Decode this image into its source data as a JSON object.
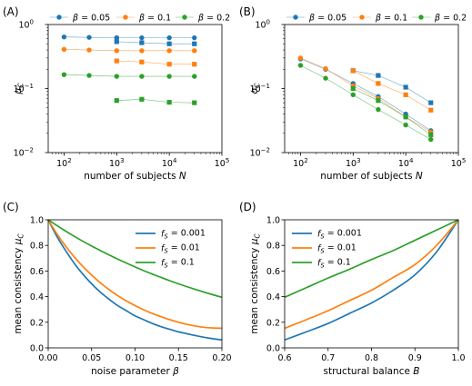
{
  "colors": {
    "blue": "#1f77b4",
    "orange": "#ff7f0e",
    "green": "#2ca02c"
  },
  "chart_data": [
    {
      "id": "A",
      "type": "scatter",
      "panel_label": "(A)",
      "xlabel": "number of subjects N",
      "ylabel": "μ_C",
      "xscale": "log",
      "yscale": "log",
      "xlim": [
        50,
        100000
      ],
      "ylim": [
        0.01,
        1
      ],
      "xticks": [
        {
          "v": 100,
          "b": "10",
          "e": "2"
        },
        {
          "v": 1000,
          "b": "10",
          "e": "3"
        },
        {
          "v": 10000,
          "b": "10",
          "e": "4"
        },
        {
          "v": 100000,
          "b": "10",
          "e": "5"
        }
      ],
      "yticks": [
        {
          "v": 0.01,
          "b": "10",
          "e": "−2"
        },
        {
          "v": 0.1,
          "b": "10",
          "e": "−1"
        },
        {
          "v": 1,
          "b": "10",
          "e": "0"
        }
      ],
      "legend": {
        "placement": "top",
        "entries": [
          {
            "label": "β = 0.05",
            "color": "#1f77b4"
          },
          {
            "label": "β = 0.1",
            "color": "#ff7f0e"
          },
          {
            "label": "β = 0.2",
            "color": "#2ca02c"
          }
        ]
      },
      "series": [
        {
          "color": "#1f77b4",
          "marker": "circle",
          "x": [
            100,
            300,
            1000
          ],
          "y": [
            0.64,
            0.63,
            0.62
          ]
        },
        {
          "color": "#1f77b4",
          "marker": "square",
          "x": [
            1000,
            3000,
            10000,
            30000
          ],
          "y": [
            0.54,
            0.52,
            0.5,
            0.5
          ]
        },
        {
          "color": "#1f77b4",
          "marker": "circle",
          "x": [
            1000,
            3000,
            10000,
            30000
          ],
          "y": [
            0.62,
            0.62,
            0.62,
            0.62
          ]
        },
        {
          "color": "#ff7f0e",
          "marker": "circle",
          "x": [
            100,
            300,
            1000,
            3000,
            10000,
            30000
          ],
          "y": [
            0.41,
            0.4,
            0.39,
            0.39,
            0.39,
            0.39
          ]
        },
        {
          "color": "#ff7f0e",
          "marker": "square",
          "x": [
            1000,
            3000,
            10000,
            30000
          ],
          "y": [
            0.27,
            0.26,
            0.24,
            0.24
          ]
        },
        {
          "color": "#2ca02c",
          "marker": "circle",
          "x": [
            100,
            300,
            1000,
            3000,
            10000,
            30000
          ],
          "y": [
            0.165,
            0.16,
            0.155,
            0.155,
            0.155,
            0.155
          ]
        },
        {
          "color": "#2ca02c",
          "marker": "square",
          "x": [
            1000,
            3000,
            10000,
            30000
          ],
          "y": [
            0.065,
            0.068,
            0.061,
            0.06
          ]
        }
      ]
    },
    {
      "id": "B",
      "type": "scatter",
      "panel_label": "(B)",
      "xlabel": "number of subjects N",
      "ylabel": "σ_C",
      "xscale": "log",
      "yscale": "log",
      "xlim": [
        50,
        100000
      ],
      "ylim": [
        0.01,
        1
      ],
      "xticks": [
        {
          "v": 100,
          "b": "10",
          "e": "2"
        },
        {
          "v": 1000,
          "b": "10",
          "e": "3"
        },
        {
          "v": 10000,
          "b": "10",
          "e": "4"
        },
        {
          "v": 100000,
          "b": "10",
          "e": "5"
        }
      ],
      "yticks": [
        {
          "v": 0.01,
          "b": "10",
          "e": "−2"
        },
        {
          "v": 0.1,
          "b": "10",
          "e": "−1"
        },
        {
          "v": 1,
          "b": "10",
          "e": "0"
        }
      ],
      "legend": {
        "placement": "top",
        "entries": [
          {
            "label": "β = 0.05",
            "color": "#1f77b4"
          },
          {
            "label": "β = 0.1",
            "color": "#ff7f0e"
          },
          {
            "label": "β = 0.2",
            "color": "#2ca02c"
          }
        ]
      },
      "series": [
        {
          "color": "#1f77b4",
          "marker": "circle",
          "x": [
            100,
            300,
            1000,
            3000,
            10000,
            30000
          ],
          "y": [
            0.29,
            0.2,
            0.12,
            0.075,
            0.04,
            0.022
          ]
        },
        {
          "color": "#1f77b4",
          "marker": "square",
          "x": [
            1000,
            3000,
            10000,
            30000
          ],
          "y": [
            0.19,
            0.16,
            0.105,
            0.06
          ]
        },
        {
          "color": "#ff7f0e",
          "marker": "circle",
          "x": [
            100,
            300,
            1000,
            3000,
            10000,
            30000
          ],
          "y": [
            0.3,
            0.205,
            0.11,
            0.07,
            0.036,
            0.021
          ]
        },
        {
          "color": "#ff7f0e",
          "marker": "square",
          "x": [
            1000,
            3000,
            10000,
            30000
          ],
          "y": [
            0.19,
            0.12,
            0.08,
            0.046
          ]
        },
        {
          "color": "#2ca02c",
          "marker": "circle",
          "x": [
            100,
            300,
            1000,
            3000,
            10000,
            30000
          ],
          "y": [
            0.23,
            0.145,
            0.08,
            0.047,
            0.027,
            0.016
          ]
        },
        {
          "color": "#2ca02c",
          "marker": "square",
          "x": [
            1000,
            3000,
            10000,
            30000
          ],
          "y": [
            0.1,
            0.065,
            0.036,
            0.019
          ]
        }
      ]
    },
    {
      "id": "C",
      "type": "line",
      "panel_label": "(C)",
      "xlabel": "noise parameter β",
      "ylabel": "mean consistency μ_C",
      "xlim": [
        0,
        0.2
      ],
      "ylim": [
        0,
        1
      ],
      "xticks": [
        "0.00",
        "0.05",
        "0.10",
        "0.15",
        "0.20"
      ],
      "yticks": [
        "0.0",
        "0.2",
        "0.4",
        "0.6",
        "0.8",
        "1.0"
      ],
      "legend": {
        "placement": "top-right",
        "entries": [
          {
            "label": "f_S = 0.001",
            "color": "#1f77b4"
          },
          {
            "label": "f_S = 0.01",
            "color": "#ff7f0e"
          },
          {
            "label": "f_S = 0.1",
            "color": "#2ca02c"
          }
        ]
      },
      "x": [
        0,
        0.01,
        0.02,
        0.03,
        0.04,
        0.05,
        0.06,
        0.07,
        0.08,
        0.09,
        0.1,
        0.11,
        0.12,
        0.13,
        0.14,
        0.15,
        0.16,
        0.17,
        0.18,
        0.19,
        0.2
      ],
      "series": [
        {
          "color": "#1f77b4",
          "values": [
            1.0,
            0.87,
            0.76,
            0.66,
            0.575,
            0.5,
            0.435,
            0.38,
            0.33,
            0.29,
            0.25,
            0.22,
            0.19,
            0.165,
            0.145,
            0.125,
            0.11,
            0.095,
            0.082,
            0.071,
            0.062
          ]
        },
        {
          "color": "#ff7f0e",
          "values": [
            1.0,
            0.89,
            0.795,
            0.71,
            0.635,
            0.568,
            0.508,
            0.455,
            0.408,
            0.366,
            0.33,
            0.297,
            0.268,
            0.243,
            0.22,
            0.2,
            0.183,
            0.17,
            0.16,
            0.155,
            0.153
          ]
        },
        {
          "color": "#2ca02c",
          "values": [
            1.0,
            0.955,
            0.912,
            0.871,
            0.832,
            0.795,
            0.76,
            0.726,
            0.693,
            0.662,
            0.632,
            0.603,
            0.576,
            0.55,
            0.524,
            0.5,
            0.477,
            0.455,
            0.434,
            0.414,
            0.395
          ]
        }
      ]
    },
    {
      "id": "D",
      "type": "line",
      "panel_label": "(D)",
      "xlabel": "structural balance B",
      "ylabel": "mean consistency μ_C",
      "xlim": [
        0.6,
        1.0
      ],
      "ylim": [
        0,
        1
      ],
      "xticks": [
        "0.6",
        "0.7",
        "0.8",
        "0.9",
        "1.0"
      ],
      "yticks": [
        "0.0",
        "0.2",
        "0.4",
        "0.6",
        "0.8",
        "1.0"
      ],
      "legend": {
        "placement": "top-left",
        "entries": [
          {
            "label": "f_S = 0.001",
            "color": "#1f77b4"
          },
          {
            "label": "f_S = 0.01",
            "color": "#ff7f0e"
          },
          {
            "label": "f_S = 0.1",
            "color": "#2ca02c"
          }
        ]
      },
      "x": [
        0.6,
        0.65,
        0.7,
        0.75,
        0.8,
        0.85,
        0.9,
        0.95,
        1.0
      ],
      "series": [
        {
          "color": "#1f77b4",
          "values": [
            0.062,
            0.125,
            0.19,
            0.27,
            0.35,
            0.45,
            0.57,
            0.75,
            1.0
          ]
        },
        {
          "color": "#ff7f0e",
          "values": [
            0.153,
            0.22,
            0.29,
            0.37,
            0.45,
            0.55,
            0.65,
            0.8,
            1.0
          ]
        },
        {
          "color": "#2ca02c",
          "values": [
            0.395,
            0.47,
            0.545,
            0.615,
            0.69,
            0.76,
            0.84,
            0.92,
            1.0
          ]
        }
      ]
    }
  ]
}
